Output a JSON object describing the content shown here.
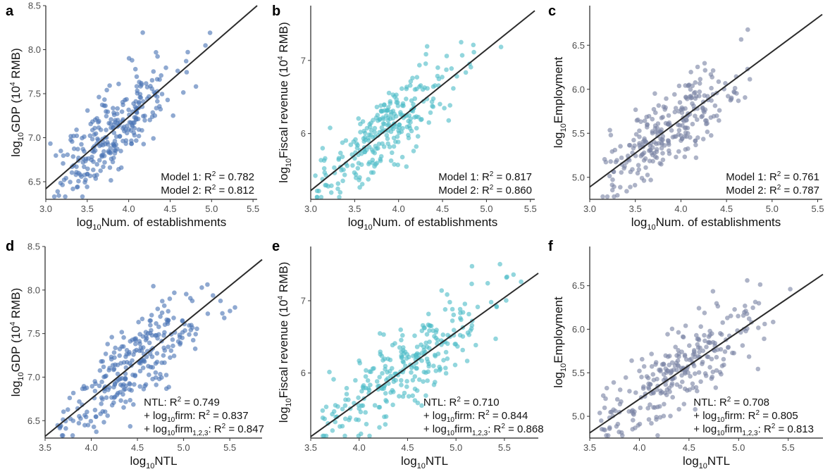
{
  "chart_data": [
    {
      "id": "a",
      "type": "scatter",
      "panel_label": "a",
      "xlabel_base": "log",
      "xlabel_sub": "10",
      "xlabel_rest": "Num. of establishments",
      "ylabel_base": "log",
      "ylabel_sub": "10",
      "ylabel_rest": "GDP (10",
      "ylabel_sup": "4",
      "ylabel_end": " RMB)",
      "xlim": [
        3.0,
        5.55
      ],
      "ylim": [
        6.3,
        8.5
      ],
      "xticks": [
        3.0,
        3.5,
        4.0,
        4.5,
        5.0,
        5.5
      ],
      "xtick_labels": [
        "3.0",
        "3.5",
        "4.0",
        "4.5",
        "5.0",
        "5.5"
      ],
      "yticks": [
        6.5,
        7.0,
        7.5,
        8.0,
        8.5
      ],
      "ytick_labels": [
        "6.5",
        "7.0",
        "7.5",
        "8.0",
        "8.5"
      ],
      "color": "#4a74b5",
      "fit_line": {
        "x": [
          3.0,
          5.55
        ],
        "y": [
          6.42,
          8.5
        ]
      },
      "annotations": [
        {
          "l": "Model 1: R",
          "s": "2",
          "r": " = 0.782"
        },
        {
          "l": "Model 2: R",
          "s": "2",
          "r": " = 0.812"
        }
      ],
      "series": [
        {
          "x_center": 3.85,
          "x_sd": 0.38,
          "x_min": 3.05,
          "x_max": 5.5,
          "slope": 0.816,
          "intercept": 3.97,
          "noise": 0.22,
          "n": 280,
          "seed": 11
        }
      ]
    },
    {
      "id": "b",
      "type": "scatter",
      "panel_label": "b",
      "xlabel_base": "log",
      "xlabel_sub": "10",
      "xlabel_rest": "Num. of establishments",
      "ylabel_base": "log",
      "ylabel_sub": "10",
      "ylabel_rest": "Fiscal revenue (10",
      "ylabel_sup": "4",
      "ylabel_end": " RMB)",
      "xlim": [
        3.0,
        5.55
      ],
      "ylim": [
        5.1,
        7.75
      ],
      "xticks": [
        3.0,
        3.5,
        4.0,
        4.5,
        5.0,
        5.5
      ],
      "xtick_labels": [
        "3.0",
        "3.5",
        "4.0",
        "4.5",
        "5.0",
        "5.5"
      ],
      "yticks": [
        6,
        7
      ],
      "ytick_labels": [
        "6",
        "7"
      ],
      "color": "#4fbdc8",
      "fit_line": {
        "x": [
          3.0,
          5.55
        ],
        "y": [
          5.22,
          7.68
        ]
      },
      "annotations": [
        {
          "l": "Model 1: R",
          "s": "2",
          "r": " = 0.817"
        },
        {
          "l": "Model 2: R",
          "s": "2",
          "r": " = 0.860"
        }
      ],
      "series": [
        {
          "x_center": 3.85,
          "x_sd": 0.38,
          "x_min": 3.05,
          "x_max": 5.48,
          "slope": 0.965,
          "intercept": 2.33,
          "noise": 0.25,
          "n": 280,
          "seed": 23
        }
      ]
    },
    {
      "id": "c",
      "type": "scatter",
      "panel_label": "c",
      "xlabel_base": "log",
      "xlabel_sub": "10",
      "xlabel_rest": "Num. of establishments",
      "ylabel_base": "log",
      "ylabel_sub": "10",
      "ylabel_rest": "Employment",
      "ylabel_sup": "",
      "ylabel_end": "",
      "xlim": [
        3.0,
        5.55
      ],
      "ylim": [
        4.75,
        6.95
      ],
      "xticks": [
        3.0,
        3.5,
        4.0,
        4.5,
        5.0,
        5.5
      ],
      "xtick_labels": [
        "3.0",
        "3.5",
        "4.0",
        "4.5",
        "5.0",
        "5.5"
      ],
      "yticks": [
        5.0,
        5.5,
        6.0,
        6.5
      ],
      "ytick_labels": [
        "5.0",
        "5.5",
        "6.0",
        "6.5"
      ],
      "color": "#7b84a4",
      "fit_line": {
        "x": [
          3.0,
          5.55
        ],
        "y": [
          4.89,
          6.85
        ]
      },
      "annotations": [
        {
          "l": "Model 1: R",
          "s": "2",
          "r": " = 0.761"
        },
        {
          "l": "Model 2: R",
          "s": "2",
          "r": " = 0.787"
        }
      ],
      "series": [
        {
          "x_center": 3.85,
          "x_sd": 0.38,
          "x_min": 3.1,
          "x_max": 5.5,
          "slope": 0.769,
          "intercept": 2.58,
          "noise": 0.2,
          "n": 280,
          "seed": 37
        }
      ]
    },
    {
      "id": "d",
      "type": "scatter",
      "panel_label": "d",
      "xlabel_base": "log",
      "xlabel_sub": "10",
      "xlabel_rest": "NTL",
      "ylabel_base": "log",
      "ylabel_sub": "10",
      "ylabel_rest": "GDP (10",
      "ylabel_sup": "4",
      "ylabel_end": " RMB)",
      "xlim": [
        3.5,
        5.85
      ],
      "ylim": [
        6.3,
        8.5
      ],
      "xticks": [
        3.5,
        4.0,
        4.5,
        5.0,
        5.5
      ],
      "xtick_labels": [
        "3.5",
        "4.0",
        "4.5",
        "5.0",
        "5.5"
      ],
      "yticks": [
        6.5,
        7.0,
        7.5,
        8.0,
        8.5
      ],
      "ytick_labels": [
        "6.5",
        "7.0",
        "7.5",
        "8.0",
        "8.5"
      ],
      "color": "#4a74b5",
      "fit_line": {
        "x": [
          3.5,
          5.85
        ],
        "y": [
          6.32,
          8.35
        ]
      },
      "annotations": [
        {
          "l": "NTL: R",
          "s": "2",
          "r": " = 0.749"
        },
        {
          "l": "+ log",
          "lsub": "10",
          "l2": "firm: R",
          "s": "2",
          "r": " = 0.837"
        },
        {
          "l": "+ log",
          "lsub": "10",
          "l2": "firm",
          "l2sub": "1,2,3",
          "l3": ": R",
          "s": "2",
          "r": " = 0.847"
        }
      ],
      "series": [
        {
          "x_center": 4.45,
          "x_sd": 0.4,
          "x_min": 3.55,
          "x_max": 5.8,
          "slope": 0.864,
          "intercept": 3.3,
          "noise": 0.24,
          "n": 280,
          "seed": 51
        }
      ]
    },
    {
      "id": "e",
      "type": "scatter",
      "panel_label": "e",
      "xlabel_base": "log",
      "xlabel_sub": "10",
      "xlabel_rest": "NTL",
      "ylabel_base": "log",
      "ylabel_sub": "10",
      "ylabel_rest": "Fiscal revenue (10",
      "ylabel_sup": "4",
      "ylabel_end": " RMB)",
      "xlim": [
        3.5,
        5.85
      ],
      "ylim": [
        5.1,
        7.75
      ],
      "xticks": [
        3.5,
        4.0,
        4.5,
        5.0,
        5.5
      ],
      "xtick_labels": [
        "3.5",
        "4.0",
        "4.5",
        "5.0",
        "5.5"
      ],
      "yticks": [
        6,
        7
      ],
      "ytick_labels": [
        "6",
        "7"
      ],
      "color": "#4fbdc8",
      "fit_line": {
        "x": [
          3.5,
          5.85
        ],
        "y": [
          5.12,
          7.38
        ]
      },
      "annotations": [
        {
          "l": "NTL: R",
          "s": "2",
          "r": " = 0.710"
        },
        {
          "l": "+ log",
          "lsub": "10",
          "l2": "firm: R",
          "s": "2",
          "r": " = 0.844"
        },
        {
          "l": "+ log",
          "lsub": "10",
          "l2": "firm",
          "l2sub": "1,2,3",
          "l3": ": R",
          "s": "2",
          "r": " = 0.868"
        }
      ],
      "series": [
        {
          "x_center": 4.45,
          "x_sd": 0.4,
          "x_min": 3.6,
          "x_max": 5.78,
          "slope": 0.962,
          "intercept": 1.75,
          "noise": 0.28,
          "n": 280,
          "seed": 67
        }
      ]
    },
    {
      "id": "f",
      "type": "scatter",
      "panel_label": "f",
      "xlabel_base": "log",
      "xlabel_sub": "10",
      "xlabel_rest": "NTL",
      "ylabel_base": "log",
      "ylabel_sub": "10",
      "ylabel_rest": "Employment",
      "ylabel_sup": "",
      "ylabel_end": "",
      "xlim": [
        3.5,
        5.85
      ],
      "ylim": [
        4.75,
        6.95
      ],
      "xticks": [
        3.5,
        4.0,
        4.5,
        5.0,
        5.5
      ],
      "xtick_labels": [
        "3.5",
        "4.0",
        "4.5",
        "5.0",
        "5.5"
      ],
      "yticks": [
        5.0,
        5.5,
        6.0,
        6.5
      ],
      "ytick_labels": [
        "5.0",
        "5.5",
        "6.0",
        "6.5"
      ],
      "color": "#7b84a4",
      "fit_line": {
        "x": [
          3.5,
          5.85
        ],
        "y": [
          4.81,
          6.63
        ]
      },
      "annotations": [
        {
          "l": "NTL: R",
          "s": "2",
          "r": " = 0.708"
        },
        {
          "l": "+ log",
          "lsub": "10",
          "l2": "firm: R",
          "s": "2",
          "r": " = 0.805"
        },
        {
          "l": "+ log",
          "lsub": "10",
          "l2": "firm",
          "l2sub": "1,2,3",
          "l3": ": R",
          "s": "2",
          "r": " = 0.813"
        }
      ],
      "series": [
        {
          "x_center": 4.45,
          "x_sd": 0.4,
          "x_min": 3.6,
          "x_max": 5.75,
          "slope": 0.774,
          "intercept": 2.1,
          "noise": 0.22,
          "n": 280,
          "seed": 83
        }
      ]
    }
  ]
}
